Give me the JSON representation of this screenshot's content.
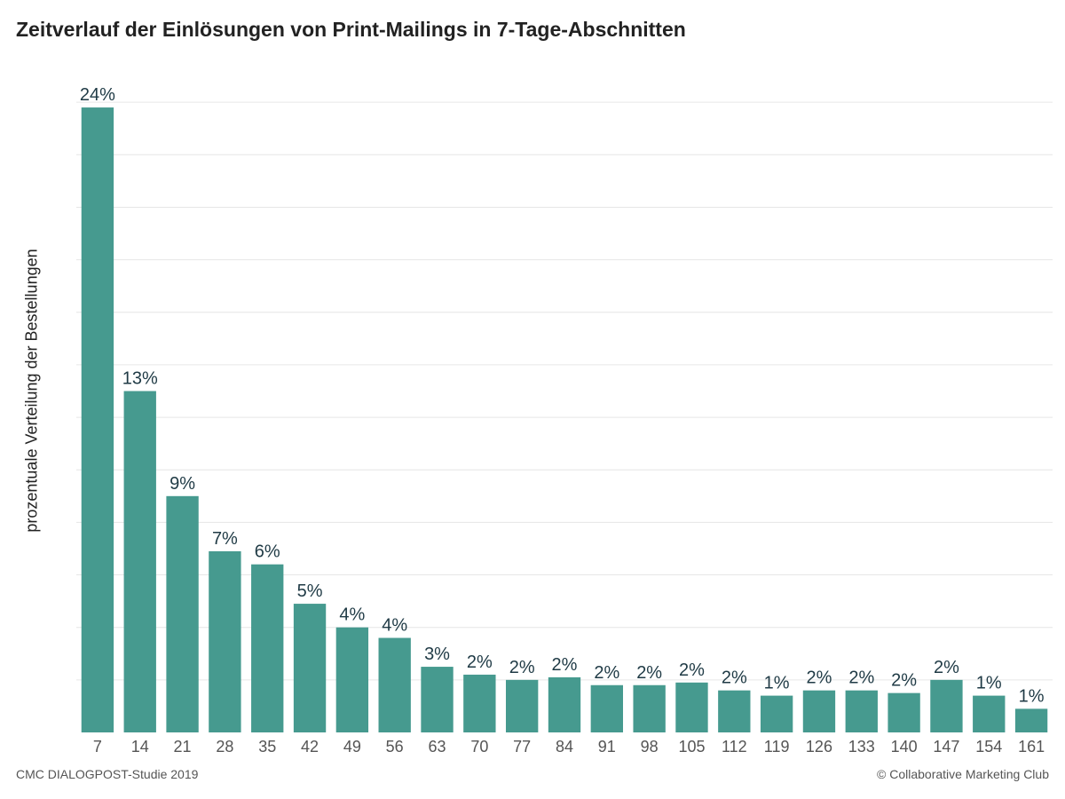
{
  "title": "Zeitverlauf der Einlösungen von Print-Mailings in 7-Tage-Abschnitten",
  "footer": {
    "source": "CMC DIALOGPOST-Studie 2019",
    "copyright": "© Collaborative Marketing Club"
  },
  "colors": {
    "bar": "#469a8f",
    "grid": "#e6e6e6",
    "label": "#1f3a45"
  },
  "chart_data": {
    "type": "bar",
    "title": "Zeitverlauf der Einlösungen von Print-Mailings in 7-Tage-Abschnitten",
    "xlabel": "",
    "ylabel": "prozentuale Verteilung der Bestellungen",
    "categories": [
      "7",
      "14",
      "21",
      "28",
      "35",
      "42",
      "49",
      "56",
      "63",
      "70",
      "77",
      "84",
      "91",
      "98",
      "105",
      "112",
      "119",
      "126",
      "133",
      "140",
      "147",
      "154",
      "161"
    ],
    "values": [
      23.8,
      13.0,
      9.0,
      6.9,
      6.4,
      4.9,
      4.0,
      3.6,
      2.5,
      2.2,
      2.0,
      2.1,
      1.8,
      1.8,
      1.9,
      1.6,
      1.4,
      1.6,
      1.6,
      1.5,
      2.0,
      1.4,
      0.9
    ],
    "data_labels": [
      "24%",
      "13%",
      "9%",
      "7%",
      "6%",
      "5%",
      "4%",
      "4%",
      "3%",
      "2%",
      "2%",
      "2%",
      "2%",
      "2%",
      "2%",
      "2%",
      "1%",
      "2%",
      "2%",
      "2%",
      "2%",
      "1%",
      "1%"
    ],
    "ylim": [
      0,
      26
    ],
    "grid": true,
    "legend": "none"
  }
}
